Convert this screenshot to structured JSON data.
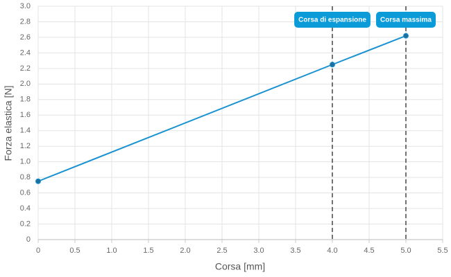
{
  "chart_data": {
    "type": "line",
    "x_label": "Corsa [mm]",
    "y_label": "Forza elastica [N]",
    "x": [
      0,
      4,
      5
    ],
    "values": [
      0.75,
      2.25,
      2.62
    ],
    "color": "#1a92d0",
    "point_color": "#1c6f9e",
    "xlim": [
      0,
      5.5
    ],
    "xticks": [
      0,
      0.5,
      {
        "value": 1,
        "label": "1.0"
      },
      1.5,
      {
        "value": 2,
        "label": "2.0"
      },
      2.5,
      {
        "value": 3,
        "label": "3.0"
      },
      3.5,
      {
        "value": 4,
        "label": "4.0"
      },
      4.5,
      {
        "value": 5,
        "label": "5.0"
      },
      5.5
    ],
    "ylim": [
      0,
      3
    ],
    "yticks": [
      0,
      0.2,
      0.4,
      0.6,
      0.8,
      {
        "value": 1,
        "label": "1.0"
      },
      1.2,
      1.4,
      1.6,
      1.8,
      {
        "value": 2,
        "label": "2.0"
      },
      2.2,
      2.4,
      2.6,
      2.8,
      {
        "value": 3,
        "label": "3.0"
      }
    ],
    "grid": true,
    "annotations": [
      {
        "x": 4,
        "label": "Corsa di espansione",
        "color": "#0b9bd8"
      },
      {
        "x": 5,
        "label": "Corsa massima",
        "color": "#0b9bd8"
      }
    ]
  }
}
